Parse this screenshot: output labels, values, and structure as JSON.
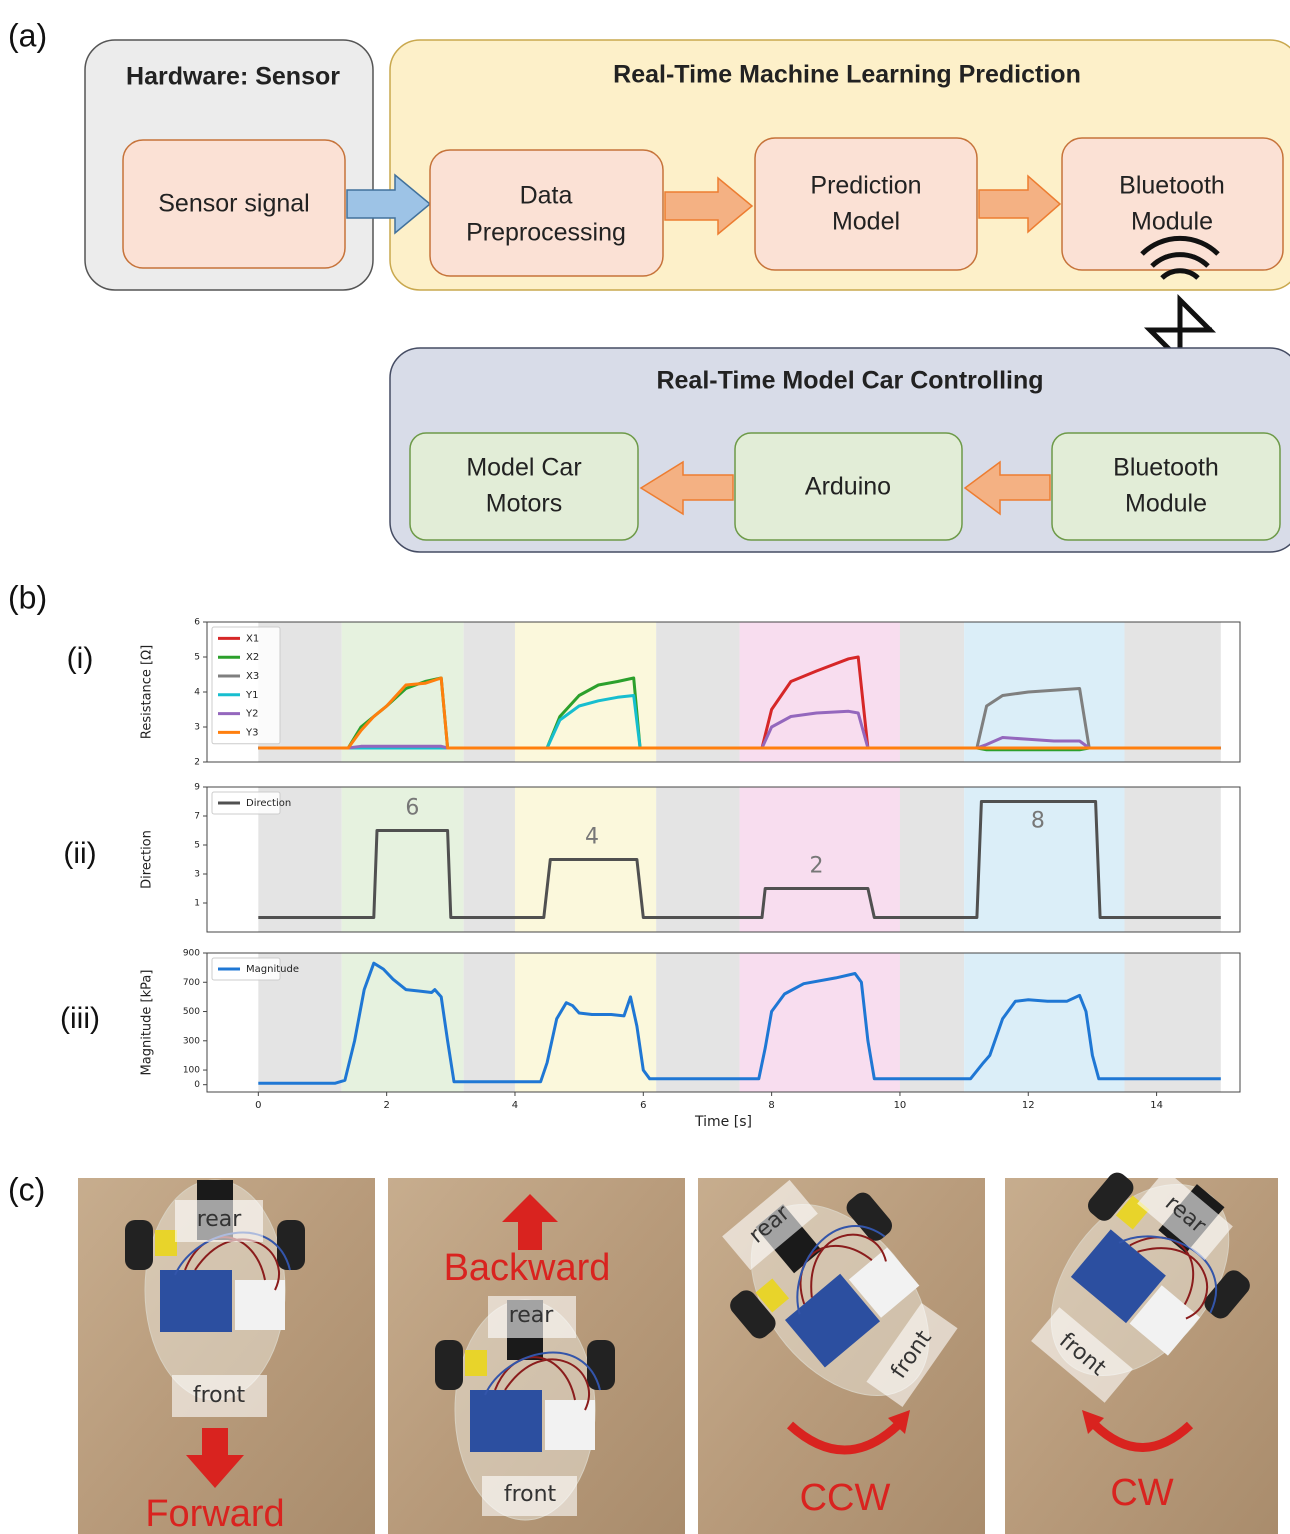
{
  "panel_labels": [
    "(a)",
    "(b)",
    "(c)"
  ],
  "diagram": {
    "hardware": {
      "title": "Hardware: Sensor",
      "nodes": [
        [
          "Sensor signal"
        ]
      ]
    },
    "prediction": {
      "title": "Real-Time Machine Learning Prediction",
      "nodes": [
        [
          "Data",
          "Preprocessing"
        ],
        [
          "Prediction",
          "Model"
        ],
        [
          "Bluetooth",
          "Module"
        ]
      ]
    },
    "controlling": {
      "title": "Real-Time Model Car Controlling",
      "nodes": [
        [
          "Model Car",
          "Motors"
        ],
        [
          "Arduino"
        ],
        [
          "Bluetooth",
          "Module"
        ]
      ]
    }
  },
  "chart_data": [
    {
      "type": "line",
      "panel": "(i)",
      "ylabel": "Resistance [Ω]",
      "xlim": [
        -0.8,
        15.3
      ],
      "ylim": [
        2,
        6
      ],
      "yticks": [
        2,
        3,
        4,
        5,
        6
      ],
      "legend": "upper-left",
      "bands": [
        {
          "start": 0,
          "end": 1.3,
          "color": "#e4e4e4"
        },
        {
          "start": 1.3,
          "end": 3.2,
          "color": "#e6f2df"
        },
        {
          "start": 3.2,
          "end": 4.0,
          "color": "#e4e4e4"
        },
        {
          "start": 4.0,
          "end": 6.2,
          "color": "#fbf8dc"
        },
        {
          "start": 6.2,
          "end": 7.5,
          "color": "#e4e4e4"
        },
        {
          "start": 7.5,
          "end": 10.0,
          "color": "#f8ddef"
        },
        {
          "start": 10.0,
          "end": 11.0,
          "color": "#e4e4e4"
        },
        {
          "start": 11.0,
          "end": 13.5,
          "color": "#dbeef8"
        },
        {
          "start": 13.5,
          "end": 15.0,
          "color": "#e4e4e4"
        }
      ],
      "x": [
        0,
        1.4,
        1.6,
        1.8,
        2.0,
        2.3,
        2.6,
        2.85,
        2.95,
        4.5,
        4.7,
        5.0,
        5.3,
        5.6,
        5.85,
        5.95,
        7.85,
        8.0,
        8.3,
        8.7,
        9.2,
        9.35,
        9.5,
        11.2,
        11.35,
        11.6,
        12.0,
        12.4,
        12.8,
        12.95,
        15.0
      ],
      "series": [
        {
          "name": "X1",
          "color": "#d62728",
          "values": [
            2.4,
            2.4,
            2.4,
            2.4,
            2.4,
            2.4,
            2.4,
            2.4,
            2.4,
            2.4,
            2.4,
            2.4,
            2.4,
            2.4,
            2.4,
            2.4,
            2.4,
            3.5,
            4.3,
            4.6,
            4.95,
            5.0,
            2.4,
            2.4,
            2.4,
            2.4,
            2.4,
            2.4,
            2.4,
            2.4,
            2.4
          ]
        },
        {
          "name": "X2",
          "color": "#2ca02c",
          "values": [
            2.4,
            2.4,
            3.0,
            3.3,
            3.6,
            4.1,
            4.3,
            4.4,
            2.4,
            2.4,
            3.3,
            3.9,
            4.2,
            4.3,
            4.4,
            2.4,
            2.4,
            2.4,
            2.4,
            2.4,
            2.4,
            2.4,
            2.4,
            2.4,
            2.35,
            2.35,
            2.35,
            2.35,
            2.35,
            2.4,
            2.4
          ]
        },
        {
          "name": "X3",
          "color": "#7f7f7f",
          "values": [
            2.4,
            2.4,
            2.4,
            2.4,
            2.4,
            2.4,
            2.4,
            2.4,
            2.4,
            2.4,
            2.4,
            2.4,
            2.4,
            2.4,
            2.4,
            2.4,
            2.4,
            2.4,
            2.4,
            2.4,
            2.4,
            2.4,
            2.4,
            2.4,
            3.6,
            3.9,
            4.0,
            4.05,
            4.1,
            2.4,
            2.4
          ]
        },
        {
          "name": "Y1",
          "color": "#17becf",
          "values": [
            2.4,
            2.4,
            2.4,
            2.4,
            2.4,
            2.4,
            2.4,
            2.4,
            2.4,
            2.4,
            3.2,
            3.6,
            3.75,
            3.85,
            3.9,
            2.4,
            2.4,
            2.4,
            2.4,
            2.4,
            2.4,
            2.4,
            2.4,
            2.4,
            2.4,
            2.4,
            2.4,
            2.4,
            2.4,
            2.4,
            2.4
          ]
        },
        {
          "name": "Y2",
          "color": "#9467bd",
          "values": [
            2.4,
            2.4,
            2.45,
            2.45,
            2.45,
            2.45,
            2.45,
            2.45,
            2.4,
            2.4,
            2.4,
            2.4,
            2.4,
            2.4,
            2.4,
            2.4,
            2.4,
            3.0,
            3.3,
            3.4,
            3.45,
            3.4,
            2.4,
            2.4,
            2.5,
            2.7,
            2.65,
            2.6,
            2.6,
            2.4,
            2.4
          ]
        },
        {
          "name": "Y3",
          "color": "#ff7f0e",
          "values": [
            2.4,
            2.4,
            2.9,
            3.3,
            3.6,
            4.2,
            4.25,
            4.4,
            2.4,
            2.4,
            2.4,
            2.4,
            2.4,
            2.4,
            2.4,
            2.4,
            2.4,
            2.4,
            2.4,
            2.4,
            2.4,
            2.4,
            2.4,
            2.4,
            2.4,
            2.4,
            2.4,
            2.4,
            2.4,
            2.4,
            2.4
          ]
        }
      ]
    },
    {
      "type": "line",
      "panel": "(ii)",
      "ylabel": "Direction",
      "xlim": [
        -0.8,
        15.3
      ],
      "ylim": [
        -1,
        9
      ],
      "yticks": [
        1,
        3,
        5,
        7,
        9
      ],
      "legend": "upper-left",
      "bands": [
        {
          "start": 0,
          "end": 1.3,
          "color": "#e4e4e4"
        },
        {
          "start": 1.3,
          "end": 3.2,
          "color": "#e6f2df"
        },
        {
          "start": 3.2,
          "end": 4.0,
          "color": "#e4e4e4"
        },
        {
          "start": 4.0,
          "end": 6.2,
          "color": "#fbf8dc"
        },
        {
          "start": 6.2,
          "end": 7.5,
          "color": "#e4e4e4"
        },
        {
          "start": 7.5,
          "end": 10.0,
          "color": "#f8ddef"
        },
        {
          "start": 10.0,
          "end": 11.0,
          "color": "#e4e4e4"
        },
        {
          "start": 11.0,
          "end": 13.5,
          "color": "#dbeef8"
        },
        {
          "start": 13.5,
          "end": 15.0,
          "color": "#e4e4e4"
        }
      ],
      "x": [
        0,
        1.8,
        1.85,
        2.4,
        2.95,
        3.0,
        4.45,
        4.55,
        5.2,
        5.9,
        6.0,
        7.85,
        7.9,
        8.7,
        9.5,
        9.6,
        11.2,
        11.27,
        12.15,
        13.05,
        13.12,
        15.0
      ],
      "series": [
        {
          "name": "Direction",
          "color": "#505050",
          "values": [
            0,
            0,
            6,
            6,
            6,
            0,
            0,
            4,
            4,
            4,
            0,
            0,
            2,
            2,
            2,
            0,
            0,
            8,
            8,
            8,
            0,
            0
          ],
          "value_labels": [
            null,
            null,
            null,
            "6",
            null,
            null,
            null,
            null,
            "4",
            null,
            null,
            null,
            null,
            "2",
            null,
            null,
            null,
            null,
            "8",
            null,
            null,
            null
          ]
        }
      ]
    },
    {
      "type": "line",
      "panel": "(iii)",
      "ylabel": "Magnitude [kPa]",
      "xlabel": "Time [s]",
      "xlim": [
        -0.8,
        15.3
      ],
      "ylim": [
        -50,
        900
      ],
      "yticks": [
        0,
        100,
        300,
        500,
        700,
        900
      ],
      "xticks": [
        0,
        2,
        4,
        6,
        8,
        10,
        12,
        14
      ],
      "legend": "upper-left",
      "bands": [
        {
          "start": 0,
          "end": 1.3,
          "color": "#e4e4e4"
        },
        {
          "start": 1.3,
          "end": 3.2,
          "color": "#e6f2df"
        },
        {
          "start": 3.2,
          "end": 4.0,
          "color": "#e4e4e4"
        },
        {
          "start": 4.0,
          "end": 6.2,
          "color": "#fbf8dc"
        },
        {
          "start": 6.2,
          "end": 7.5,
          "color": "#e4e4e4"
        },
        {
          "start": 7.5,
          "end": 10.0,
          "color": "#f8ddef"
        },
        {
          "start": 10.0,
          "end": 11.0,
          "color": "#e4e4e4"
        },
        {
          "start": 11.0,
          "end": 13.5,
          "color": "#dbeef8"
        },
        {
          "start": 13.5,
          "end": 15.0,
          "color": "#e4e4e4"
        }
      ],
      "x": [
        0,
        1.2,
        1.35,
        1.5,
        1.65,
        1.8,
        1.95,
        2.1,
        2.3,
        2.5,
        2.7,
        2.75,
        2.85,
        2.95,
        3.05,
        4.4,
        4.5,
        4.65,
        4.8,
        4.9,
        5.0,
        5.2,
        5.5,
        5.7,
        5.8,
        5.9,
        6.0,
        6.1,
        7.8,
        7.9,
        8.0,
        8.2,
        8.5,
        9.0,
        9.3,
        9.4,
        9.5,
        9.6,
        11.1,
        11.3,
        11.4,
        11.6,
        11.8,
        12.0,
        12.3,
        12.6,
        12.8,
        12.9,
        13.0,
        13.1,
        15.0
      ],
      "series": [
        {
          "name": "Magnitude",
          "color": "#1f77d4",
          "values": [
            10,
            10,
            30,
            300,
            650,
            830,
            790,
            720,
            650,
            640,
            630,
            650,
            600,
            300,
            20,
            20,
            150,
            450,
            560,
            540,
            490,
            480,
            480,
            470,
            600,
            400,
            100,
            40,
            40,
            250,
            500,
            620,
            690,
            730,
            760,
            700,
            300,
            40,
            40,
            150,
            200,
            450,
            570,
            580,
            570,
            570,
            610,
            500,
            200,
            40,
            40
          ]
        }
      ]
    }
  ],
  "photos": [
    {
      "labels": [
        "rear",
        "front"
      ],
      "motion": "Forward"
    },
    {
      "labels": [
        "rear",
        "front"
      ],
      "motion": "Backward"
    },
    {
      "labels": [
        "rear",
        "front"
      ],
      "motion": "CCW"
    },
    {
      "labels": [
        "rear",
        "front"
      ],
      "motion": "CW"
    }
  ]
}
